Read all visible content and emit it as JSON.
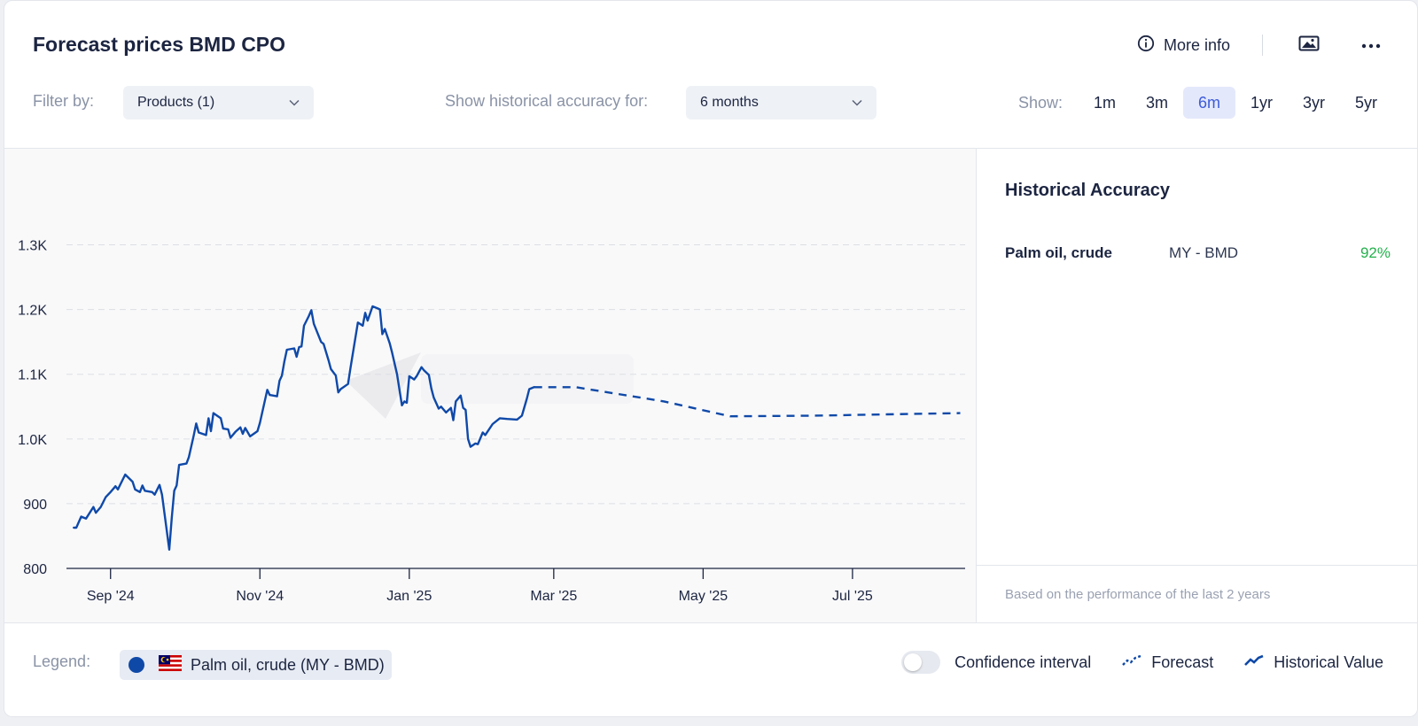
{
  "header": {
    "title": "Forecast prices BMD CPO",
    "more_info": "More info",
    "icons": [
      "info-icon",
      "image-icon",
      "more-icon"
    ]
  },
  "filters": {
    "filter_label": "Filter by:",
    "products_value": "Products (1)",
    "accuracy_label": "Show historical accuracy for:",
    "accuracy_value": "6 months",
    "show_label": "Show:",
    "ranges": [
      "1m",
      "3m",
      "6m",
      "1yr",
      "3yr",
      "5yr"
    ],
    "active_range": "6m"
  },
  "side": {
    "title": "Historical Accuracy",
    "rows": [
      {
        "name": "Palm oil, crude",
        "market": "MY - BMD",
        "value": "92%"
      }
    ],
    "footnote": "Based on the performance of the last 2 years"
  },
  "legend": {
    "label": "Legend:",
    "series_label": "Palm oil, crude (MY - BMD)",
    "confidence_label": "Confidence interval",
    "forecast_label": "Forecast",
    "historical_label": "Historical Value"
  },
  "colors": {
    "line": "#0f49a8",
    "accent": "#3b5bdb",
    "accuracy": "#22b04b"
  },
  "chart_data": {
    "type": "line",
    "ylim": [
      800,
      1350
    ],
    "yticks": [
      800,
      900,
      1000,
      1100,
      1200,
      1300
    ],
    "ytick_labels": [
      "800",
      "900",
      "1.0K",
      "1.1K",
      "1.2K",
      "1.3K"
    ],
    "xlim": [
      "2024-08-14",
      "2025-08-16"
    ],
    "xticks": [
      "2024-09-01",
      "2024-11-01",
      "2025-01-01",
      "2025-03-01",
      "2025-05-01",
      "2025-07-01"
    ],
    "xtick_labels": [
      "Sep '24",
      "Nov '24",
      "Jan '25",
      "Mar '25",
      "May '25",
      "Jul '25"
    ],
    "grid": true,
    "series": [
      {
        "role": "historical",
        "style": "solid",
        "points": [
          [
            "2024-08-17",
            863
          ],
          [
            "2024-08-18",
            863
          ],
          [
            "2024-08-20",
            880
          ],
          [
            "2024-08-22",
            877
          ],
          [
            "2024-08-25",
            895
          ],
          [
            "2024-08-26",
            886
          ],
          [
            "2024-08-28",
            895
          ],
          [
            "2024-08-30",
            910
          ],
          [
            "2024-09-01",
            918
          ],
          [
            "2024-09-03",
            927
          ],
          [
            "2024-09-04",
            922
          ],
          [
            "2024-09-07",
            945
          ],
          [
            "2024-09-10",
            934
          ],
          [
            "2024-09-11",
            922
          ],
          [
            "2024-09-13",
            918
          ],
          [
            "2024-09-14",
            928
          ],
          [
            "2024-09-15",
            920
          ],
          [
            "2024-09-18",
            918
          ],
          [
            "2024-09-19",
            914
          ],
          [
            "2024-09-21",
            929
          ],
          [
            "2024-09-22",
            914
          ],
          [
            "2024-09-25",
            829
          ],
          [
            "2024-09-26",
            878
          ],
          [
            "2024-09-27",
            920
          ],
          [
            "2024-09-28",
            928
          ],
          [
            "2024-09-29",
            960
          ],
          [
            "2024-10-02",
            962
          ],
          [
            "2024-10-03",
            972
          ],
          [
            "2024-10-05",
            1006
          ],
          [
            "2024-10-06",
            1024
          ],
          [
            "2024-10-07",
            1010
          ],
          [
            "2024-10-10",
            1006
          ],
          [
            "2024-10-11",
            1032
          ],
          [
            "2024-10-12",
            1012
          ],
          [
            "2024-10-13",
            1040
          ],
          [
            "2024-10-16",
            1032
          ],
          [
            "2024-10-17",
            1016
          ],
          [
            "2024-10-19",
            1015
          ],
          [
            "2024-10-20",
            1002
          ],
          [
            "2024-10-22",
            1011
          ],
          [
            "2024-10-24",
            1018
          ],
          [
            "2024-10-25",
            1008
          ],
          [
            "2024-10-26",
            1017
          ],
          [
            "2024-10-28",
            1004
          ],
          [
            "2024-10-31",
            1012
          ],
          [
            "2024-11-01",
            1025
          ],
          [
            "2024-11-04",
            1076
          ],
          [
            "2024-11-05",
            1068
          ],
          [
            "2024-11-08",
            1066
          ],
          [
            "2024-11-09",
            1090
          ],
          [
            "2024-11-10",
            1098
          ],
          [
            "2024-11-11",
            1120
          ],
          [
            "2024-11-12",
            1138
          ],
          [
            "2024-11-15",
            1140
          ],
          [
            "2024-11-16",
            1127
          ],
          [
            "2024-11-17",
            1142
          ],
          [
            "2024-11-18",
            1143
          ],
          [
            "2024-11-19",
            1175
          ],
          [
            "2024-11-21",
            1190
          ],
          [
            "2024-11-22",
            1199
          ],
          [
            "2024-11-23",
            1178
          ],
          [
            "2024-11-26",
            1150
          ],
          [
            "2024-11-27",
            1147
          ],
          [
            "2024-11-29",
            1122
          ],
          [
            "2024-11-30",
            1108
          ],
          [
            "2024-12-02",
            1098
          ],
          [
            "2024-12-03",
            1072
          ],
          [
            "2024-12-04",
            1077
          ],
          [
            "2024-12-07",
            1085
          ],
          [
            "2024-12-08",
            1110
          ],
          [
            "2024-12-11",
            1180
          ],
          [
            "2024-12-13",
            1175
          ],
          [
            "2024-12-14",
            1195
          ],
          [
            "2024-12-15",
            1183
          ],
          [
            "2024-12-17",
            1205
          ],
          [
            "2024-12-19",
            1202
          ],
          [
            "2024-12-20",
            1200
          ],
          [
            "2024-12-21",
            1162
          ],
          [
            "2024-12-22",
            1170
          ],
          [
            "2024-12-24",
            1148
          ],
          [
            "2024-12-25",
            1133
          ],
          [
            "2024-12-27",
            1100
          ],
          [
            "2024-12-29",
            1052
          ],
          [
            "2024-12-30",
            1058
          ],
          [
            "2024-12-31",
            1056
          ],
          [
            "2025-01-01",
            1097
          ],
          [
            "2025-01-03",
            1092
          ],
          [
            "2025-01-04",
            1097
          ],
          [
            "2025-01-06",
            1111
          ],
          [
            "2025-01-07",
            1106
          ],
          [
            "2025-01-09",
            1099
          ],
          [
            "2025-01-10",
            1078
          ],
          [
            "2025-01-11",
            1064
          ],
          [
            "2025-01-13",
            1047
          ],
          [
            "2025-01-14",
            1050
          ],
          [
            "2025-01-16",
            1041
          ],
          [
            "2025-01-18",
            1048
          ],
          [
            "2025-01-19",
            1029
          ],
          [
            "2025-01-20",
            1058
          ],
          [
            "2025-01-22",
            1067
          ],
          [
            "2025-01-23",
            1048
          ],
          [
            "2025-01-24",
            1045
          ],
          [
            "2025-01-25",
            1000
          ],
          [
            "2025-01-26",
            988
          ],
          [
            "2025-01-28",
            993
          ],
          [
            "2025-01-29",
            992
          ],
          [
            "2025-01-31",
            1010
          ],
          [
            "2025-02-01",
            1006
          ],
          [
            "2025-02-04",
            1023
          ],
          [
            "2025-02-07",
            1032
          ],
          [
            "2025-02-10",
            1031
          ],
          [
            "2025-02-14",
            1030
          ],
          [
            "2025-02-16",
            1036
          ],
          [
            "2025-02-18",
            1062
          ],
          [
            "2025-02-19",
            1077
          ],
          [
            "2025-02-21",
            1080
          ]
        ]
      },
      {
        "role": "forecast",
        "style": "dashed",
        "points": [
          [
            "2025-02-21",
            1080
          ],
          [
            "2025-03-10",
            1080
          ],
          [
            "2025-04-15",
            1058
          ],
          [
            "2025-05-12",
            1035
          ],
          [
            "2025-06-15",
            1036
          ],
          [
            "2025-07-15",
            1038
          ],
          [
            "2025-08-14",
            1040
          ]
        ]
      }
    ]
  }
}
